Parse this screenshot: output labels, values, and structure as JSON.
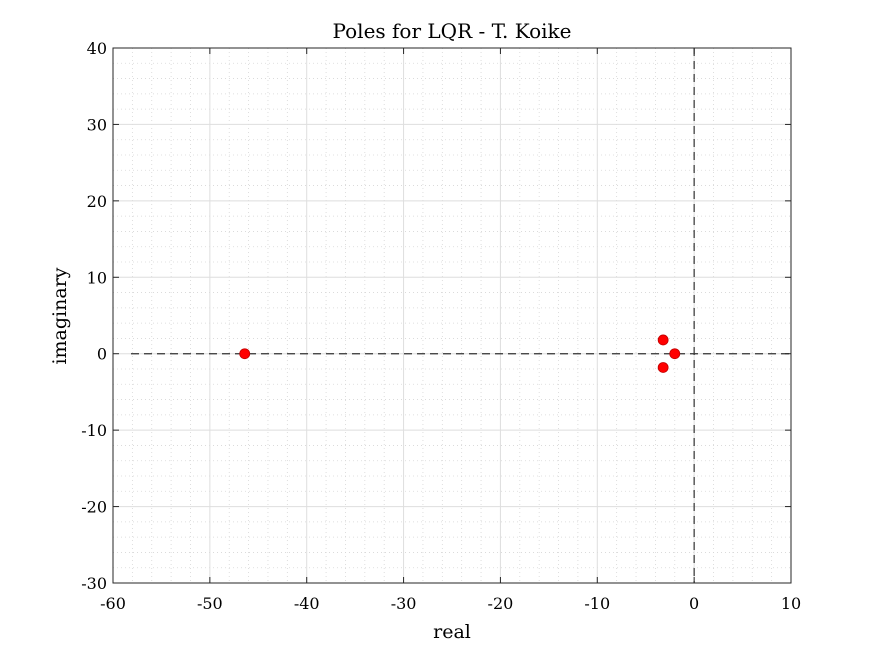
{
  "chart_data": {
    "type": "scatter",
    "title": "Poles for LQR - T. Koike",
    "xlabel": "real",
    "ylabel": "imaginary",
    "xlim": [
      -60,
      10
    ],
    "ylim": [
      -30,
      40
    ],
    "x_ticks": [
      -60,
      -50,
      -40,
      -30,
      -20,
      -10,
      0,
      10
    ],
    "y_ticks": [
      -30,
      -20,
      -10,
      0,
      10,
      20,
      30,
      40
    ],
    "x_tick_labels": [
      "-60",
      "-50",
      "-40",
      "-30",
      "-20",
      "-10",
      "0",
      "10"
    ],
    "y_tick_labels": [
      "-30",
      "-20",
      "-10",
      "0",
      "10",
      "20",
      "30",
      "40"
    ],
    "grid": true,
    "minor_grid": true,
    "reference_lines": [
      "x = 0 dashed",
      "y = 0 dashed"
    ],
    "marker_color": "#ff0000",
    "series": [
      {
        "points": [
          {
            "x": -46.4,
            "y": 0
          },
          {
            "x": -3.2,
            "y": 1.8
          },
          {
            "x": -3.2,
            "y": -1.8
          },
          {
            "x": -2.0,
            "y": 0
          }
        ]
      }
    ]
  }
}
